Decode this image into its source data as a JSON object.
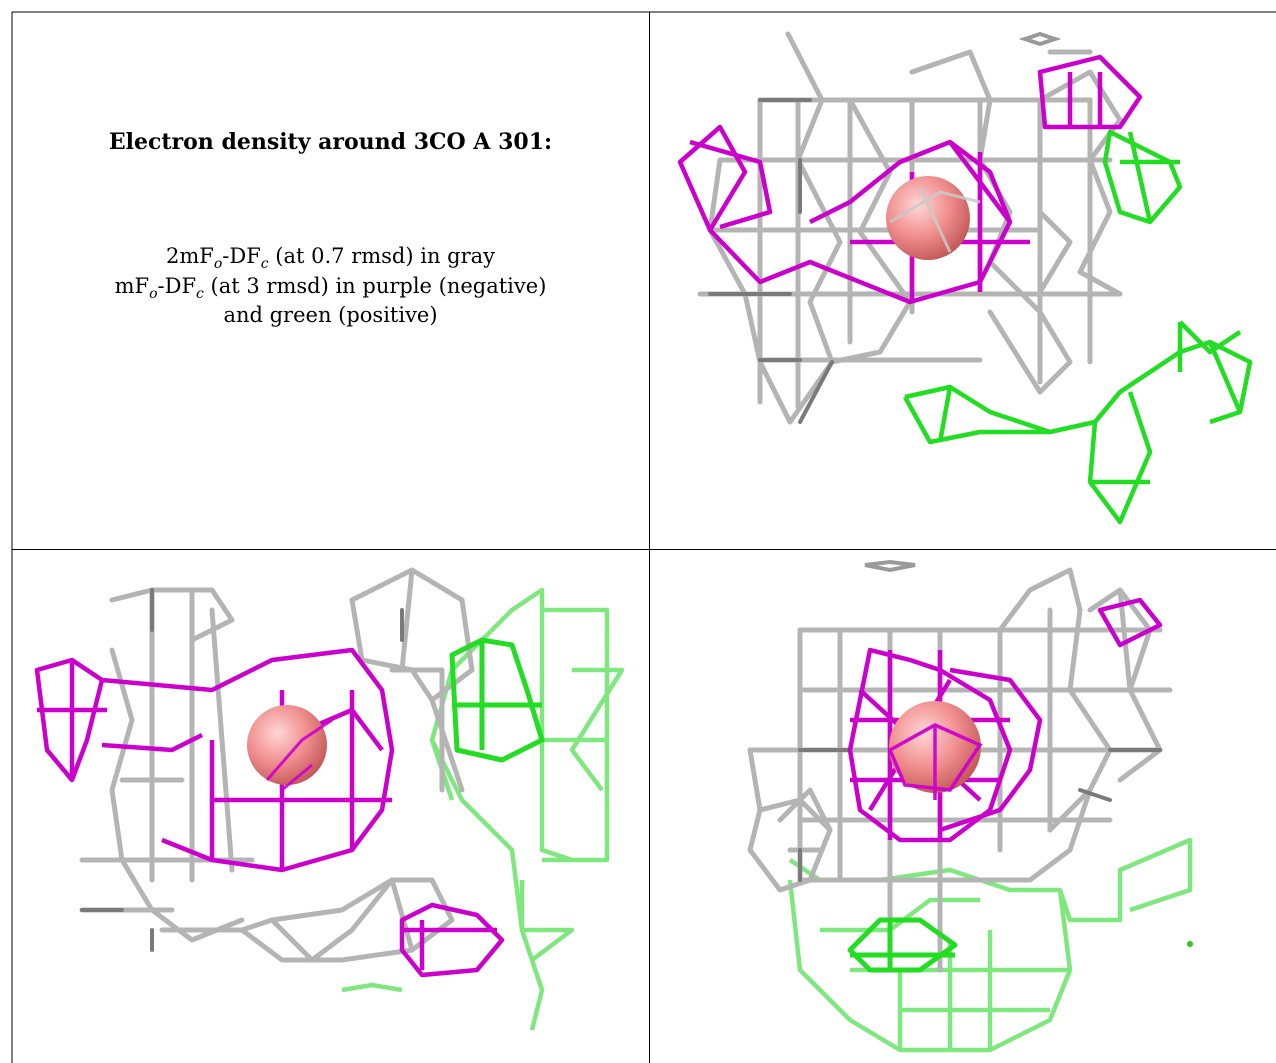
{
  "caption": {
    "title": "Electron density around 3CO A 301:",
    "line1": {
      "pre": "2mF",
      "sub1": "o",
      "mid": "-DF",
      "sub2": "c",
      "post": " (at 0.7 rmsd) in gray"
    },
    "line2": {
      "pre": "mF",
      "sub1": "o",
      "mid": "-DF",
      "sub2": "c",
      "post": " (at 3 rmsd) in purple (negative)"
    },
    "line3": "and green (positive)"
  },
  "colors": {
    "gray": "#b4b4b4",
    "dark_gray": "#7a7a7a",
    "purple": "#cc00cc",
    "green": "#22dd22",
    "light_green": "#7ee87e",
    "atom": "#f08c8c"
  },
  "panels": [
    {
      "id": "view-1",
      "atom": "cobalt-atom"
    },
    {
      "id": "view-2",
      "atom": "cobalt-atom"
    },
    {
      "id": "view-3",
      "atom": "cobalt-atom"
    }
  ]
}
